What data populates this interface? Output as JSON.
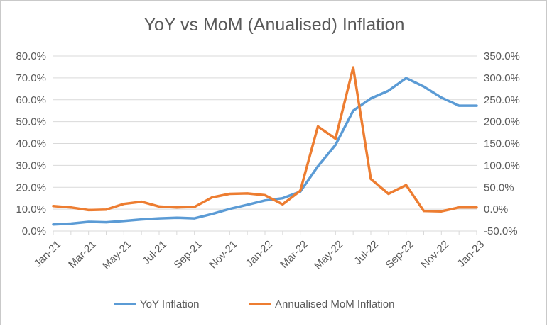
{
  "chart_data": {
    "type": "line",
    "title": "YoY vs MoM (Anualised) Inflation",
    "categories": [
      "Jan-21",
      "Feb-21",
      "Mar-21",
      "Apr-21",
      "May-21",
      "Jun-21",
      "Jul-21",
      "Aug-21",
      "Sep-21",
      "Oct-21",
      "Nov-21",
      "Dec-21",
      "Jan-22",
      "Feb-22",
      "Mar-22",
      "Apr-22",
      "May-22",
      "Jun-22",
      "Jul-22",
      "Aug-22",
      "Sep-22",
      "Oct-22",
      "Nov-22",
      "Dec-22",
      "Jan-23"
    ],
    "x_tick_labels": [
      "Jan-21",
      "Mar-21",
      "May-21",
      "Jul-21",
      "Sep-21",
      "Nov-21",
      "Jan-22",
      "Mar-22",
      "May-22",
      "Jul-22",
      "Sep-22",
      "Nov-22",
      "Jan-23"
    ],
    "left_axis": {
      "ylim": [
        0,
        0.8
      ],
      "tick_labels": [
        "0.0%",
        "10.0%",
        "20.0%",
        "30.0%",
        "40.0%",
        "50.0%",
        "60.0%",
        "70.0%",
        "80.0%"
      ]
    },
    "right_axis": {
      "ylim": [
        -0.5,
        3.5
      ],
      "tick_labels": [
        "-50.0%",
        "0.0%",
        "50.0%",
        "100.0%",
        "150.0%",
        "200.0%",
        "250.0%",
        "300.0%",
        "350.0%"
      ]
    },
    "grid": true,
    "legend_position": "bottom",
    "series": [
      {
        "name": "YoY Inflation",
        "axis": "left",
        "color": "#5b9bd5",
        "values": [
          0.03,
          0.034,
          0.042,
          0.04,
          0.046,
          0.053,
          0.058,
          0.061,
          0.058,
          0.078,
          0.101,
          0.12,
          0.14,
          0.15,
          0.18,
          0.296,
          0.394,
          0.55,
          0.606,
          0.641,
          0.699,
          0.66,
          0.61,
          0.573,
          0.573
        ]
      },
      {
        "name": "Annualised MoM Inflation",
        "axis": "right",
        "color": "#ed7d31",
        "values": [
          0.07,
          0.04,
          -0.02,
          -0.01,
          0.12,
          0.17,
          0.06,
          0.04,
          0.05,
          0.27,
          0.35,
          0.36,
          0.32,
          0.11,
          0.42,
          1.89,
          1.61,
          3.24,
          0.69,
          0.35,
          0.55,
          -0.04,
          -0.05,
          0.04,
          0.04
        ]
      }
    ]
  }
}
